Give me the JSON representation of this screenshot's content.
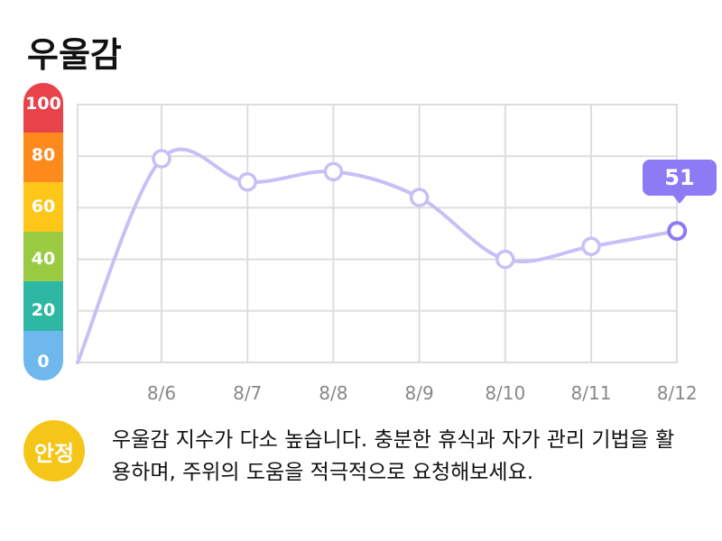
{
  "title": "우울감",
  "status_badge": "안정",
  "message": "우울감 지수가 다소 높습니다. 충분한 휴식과 자가 관리 기법을 활용하며, 주위의 도움을 적극적으로 요청해보세요.",
  "highlight": {
    "label": "51",
    "color": "#8C7BF5"
  },
  "colors": {
    "line": "#C9BFF7",
    "marker_fill": "#FFFFFF",
    "grid": "#DDDDDD",
    "badge": "#F5C518",
    "scale_bands": [
      "#E8424A",
      "#FF8A1C",
      "#FFC61A",
      "#9ACB43",
      "#2EB8A4",
      "#6FB8EE"
    ]
  },
  "chart_data": {
    "type": "line",
    "title": "우울감",
    "categories": [
      "8/6",
      "8/7",
      "8/8",
      "8/9",
      "8/10",
      "8/11",
      "8/12"
    ],
    "start_value": 0,
    "values": [
      79,
      70,
      74,
      64,
      40,
      45,
      51
    ],
    "highlight_index": 6,
    "y_ticks": [
      0,
      20,
      40,
      60,
      80,
      100
    ],
    "ylim": [
      0,
      100
    ],
    "grid": true,
    "xlabel": "",
    "ylabel": ""
  }
}
